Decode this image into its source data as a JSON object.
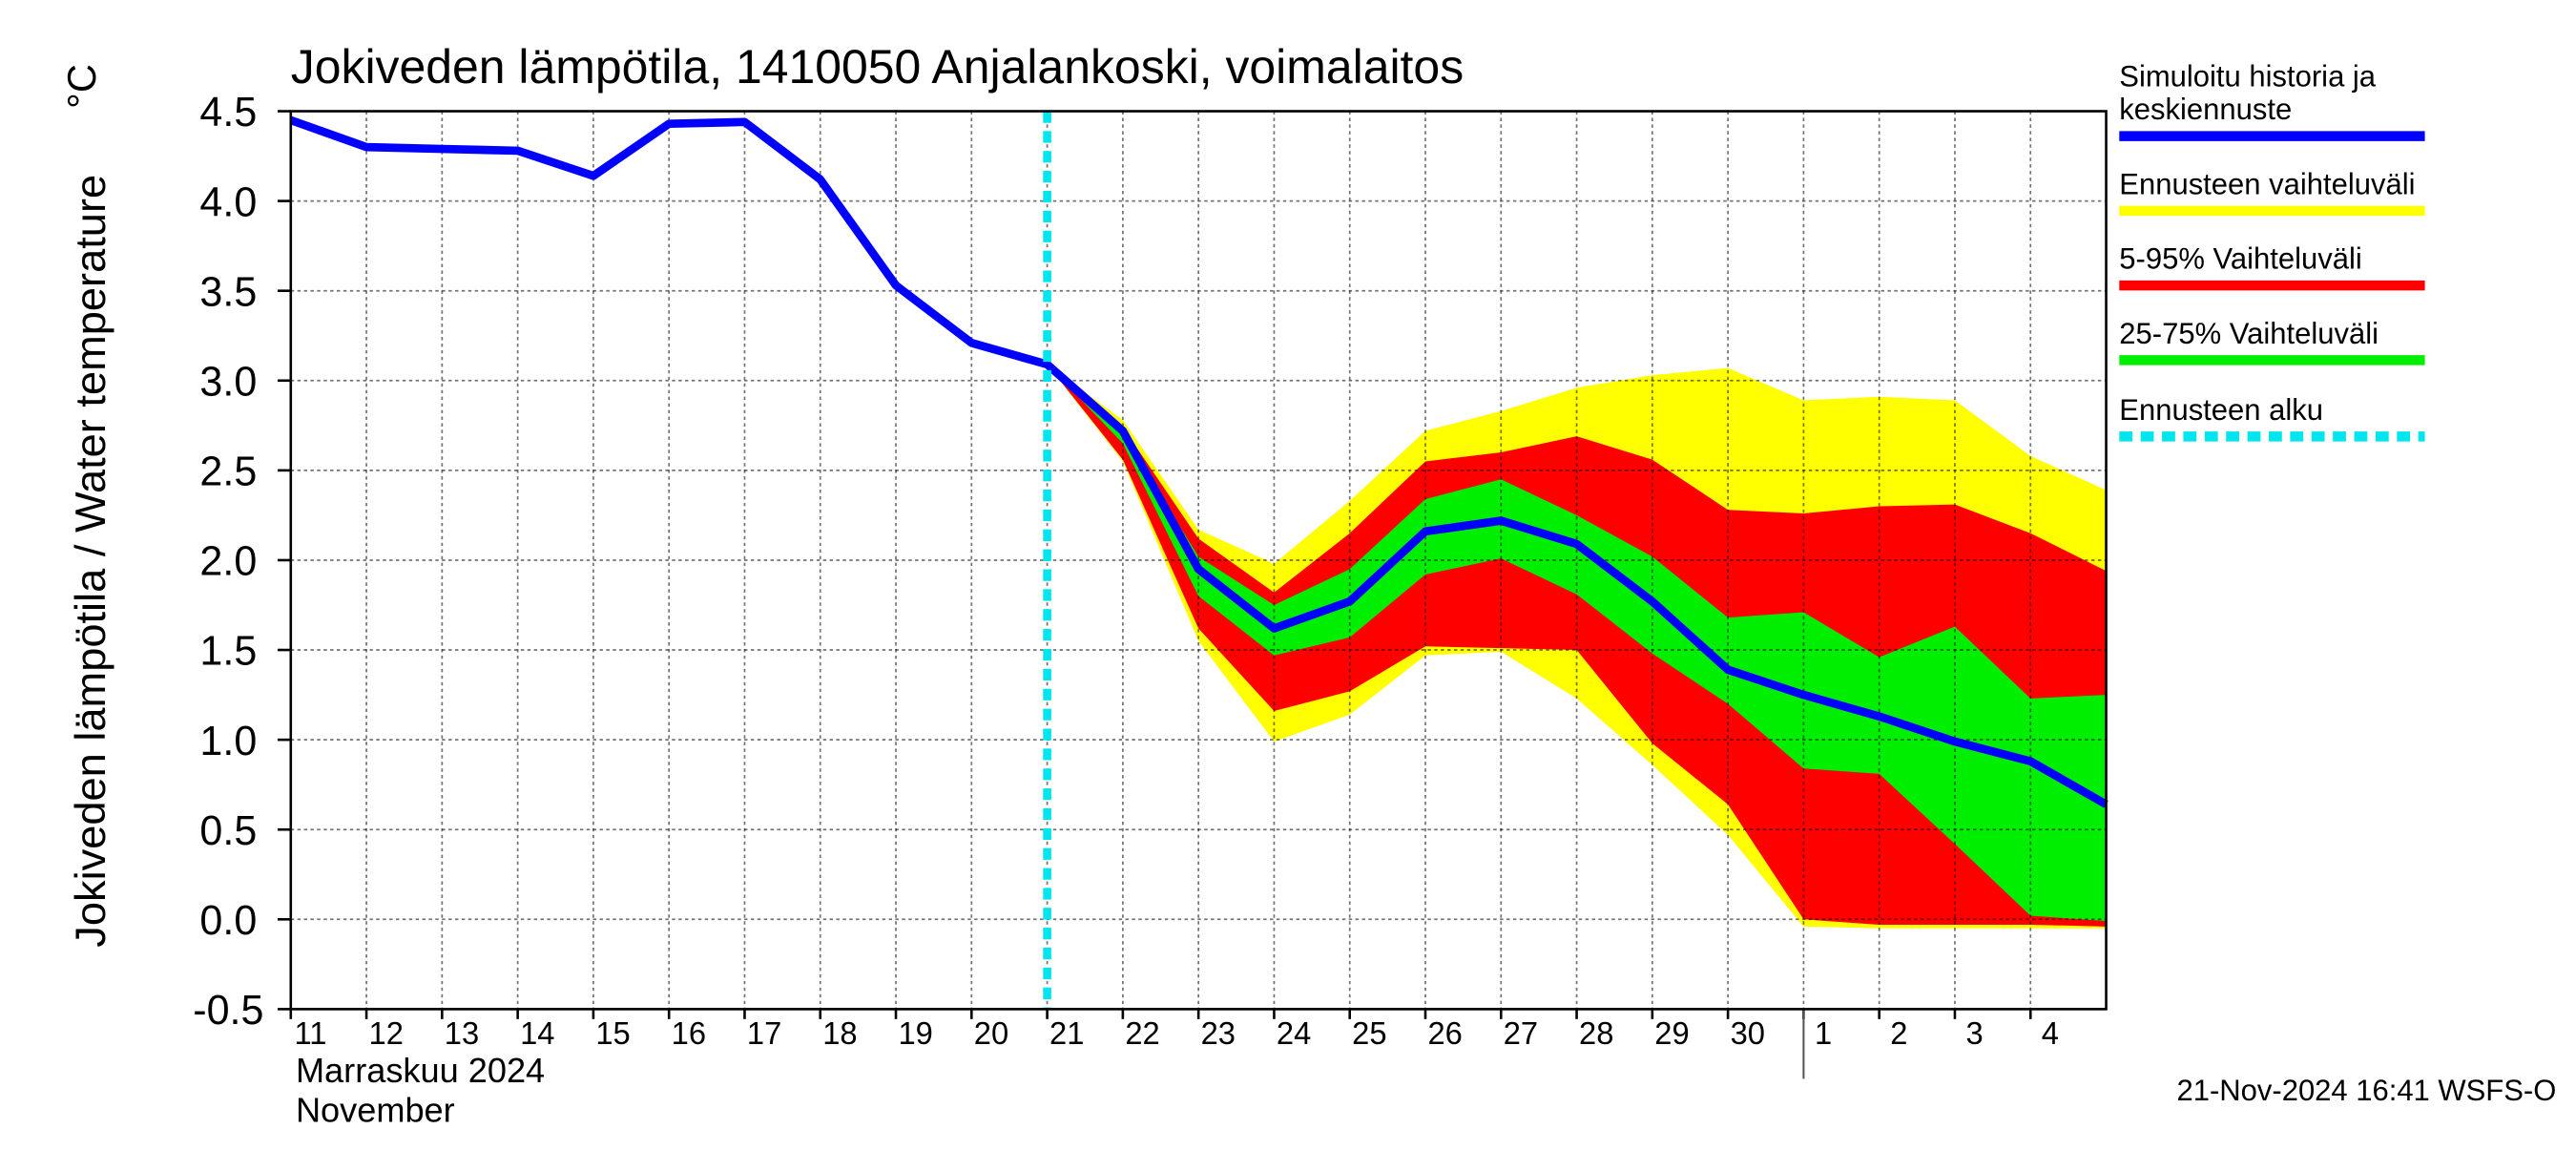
{
  "chart_data": {
    "type": "line",
    "title": "Jokiveden lämpötila, 1410050 Anjalankoski, voimalaitos",
    "y_label": "Jokiveden lämpötila / Water temperature",
    "y_unit": "°C",
    "x_label_lines": [
      "Marraskuu 2024",
      "November"
    ],
    "footer": "21-Nov-2024 16:41 WSFS-O",
    "x": [
      "2024-11-11",
      "2024-11-12",
      "2024-11-13",
      "2024-11-14",
      "2024-11-15",
      "2024-11-16",
      "2024-11-17",
      "2024-11-18",
      "2024-11-19",
      "2024-11-20",
      "2024-11-21",
      "2024-11-22",
      "2024-11-23",
      "2024-11-24",
      "2024-11-25",
      "2024-11-26",
      "2024-11-27",
      "2024-11-28",
      "2024-11-29",
      "2024-11-30",
      "2024-12-01",
      "2024-12-02",
      "2024-12-03",
      "2024-12-04",
      "2024-12-05"
    ],
    "xlim": [
      "2024-11-11",
      "2024-12-05"
    ],
    "xticks": [
      {
        "value": "2024-11-11",
        "label": "11"
      },
      {
        "value": "2024-11-12",
        "label": "12"
      },
      {
        "value": "2024-11-13",
        "label": "13"
      },
      {
        "value": "2024-11-14",
        "label": "14"
      },
      {
        "value": "2024-11-15",
        "label": "15"
      },
      {
        "value": "2024-11-16",
        "label": "16"
      },
      {
        "value": "2024-11-17",
        "label": "17"
      },
      {
        "value": "2024-11-18",
        "label": "18"
      },
      {
        "value": "2024-11-19",
        "label": "19"
      },
      {
        "value": "2024-11-20",
        "label": "20"
      },
      {
        "value": "2024-11-21",
        "label": "21"
      },
      {
        "value": "2024-11-22",
        "label": "22"
      },
      {
        "value": "2024-11-23",
        "label": "23"
      },
      {
        "value": "2024-11-24",
        "label": "24"
      },
      {
        "value": "2024-11-25",
        "label": "25"
      },
      {
        "value": "2024-11-26",
        "label": "26"
      },
      {
        "value": "2024-11-27",
        "label": "27"
      },
      {
        "value": "2024-11-28",
        "label": "28"
      },
      {
        "value": "2024-11-29",
        "label": "29"
      },
      {
        "value": "2024-11-30",
        "label": "30"
      },
      {
        "value": "2024-12-01",
        "label": "1"
      },
      {
        "value": "2024-12-02",
        "label": "2"
      },
      {
        "value": "2024-12-03",
        "label": "3"
      },
      {
        "value": "2024-12-04",
        "label": "4"
      }
    ],
    "month_boundary": "2024-12-01",
    "ylim": [
      -0.5,
      4.5
    ],
    "yticks": [
      -0.5,
      {
        "value": 0,
        "label": "0.0"
      },
      0.5,
      {
        "value": 1,
        "label": "1.0"
      },
      1.5,
      {
        "value": 2,
        "label": "2.0"
      },
      2.5,
      {
        "value": 3,
        "label": "3.0"
      },
      3.5,
      {
        "value": 4,
        "label": "4.0"
      },
      4.5
    ],
    "grid": true,
    "series": [
      {
        "name": "Simuloitu historia ja keskiennuste",
        "color": "#0000ff",
        "values": [
          4.45,
          4.3,
          4.29,
          4.28,
          4.14,
          4.43,
          4.44,
          4.12,
          3.53,
          3.21,
          3.09,
          2.72,
          1.95,
          1.62,
          1.77,
          2.16,
          2.22,
          2.09,
          1.77,
          1.39,
          1.25,
          1.13,
          0.99,
          0.88,
          0.64
        ]
      },
      {
        "name": "Ennusteen vaihteluväli",
        "color": "#ffff00",
        "high": [
          null,
          null,
          null,
          null,
          null,
          null,
          null,
          null,
          null,
          null,
          3.09,
          2.78,
          2.17,
          1.98,
          2.33,
          2.72,
          2.83,
          2.96,
          3.03,
          3.07,
          2.89,
          2.91,
          2.89,
          2.58,
          2.39
        ],
        "low": [
          null,
          null,
          null,
          null,
          null,
          null,
          null,
          null,
          null,
          null,
          3.09,
          2.55,
          1.55,
          0.99,
          1.14,
          1.47,
          1.49,
          1.23,
          0.86,
          0.47,
          -0.04,
          -0.05,
          -0.05,
          -0.05,
          -0.05
        ]
      },
      {
        "name": "5-95% Vaihteluväli",
        "color": "#ff0000",
        "high": [
          null,
          null,
          null,
          null,
          null,
          null,
          null,
          null,
          null,
          null,
          3.09,
          2.74,
          2.12,
          1.82,
          2.15,
          2.55,
          2.6,
          2.69,
          2.56,
          2.28,
          2.26,
          2.3,
          2.31,
          2.15,
          1.94
        ],
        "low": [
          null,
          null,
          null,
          null,
          null,
          null,
          null,
          null,
          null,
          null,
          3.09,
          2.56,
          1.62,
          1.16,
          1.27,
          1.52,
          1.51,
          1.5,
          0.98,
          0.64,
          0.0,
          -0.03,
          -0.03,
          -0.03,
          -0.04
        ]
      },
      {
        "name": "25-75% Vaihteluväli",
        "color": "#00ee00",
        "high": [
          null,
          null,
          null,
          null,
          null,
          null,
          null,
          null,
          null,
          null,
          3.09,
          2.7,
          2.02,
          1.75,
          1.95,
          2.34,
          2.45,
          2.25,
          2.02,
          1.68,
          1.71,
          1.46,
          1.63,
          1.23,
          1.25
        ],
        "low": [
          null,
          null,
          null,
          null,
          null,
          null,
          null,
          null,
          null,
          null,
          3.09,
          2.65,
          1.8,
          1.47,
          1.57,
          1.92,
          2.01,
          1.81,
          1.48,
          1.2,
          0.84,
          0.81,
          0.42,
          0.02,
          -0.01
        ]
      }
    ],
    "forecast_start": {
      "name": "Ennusteen alku",
      "color": "#00e5ee",
      "x": "2024-11-21"
    }
  }
}
